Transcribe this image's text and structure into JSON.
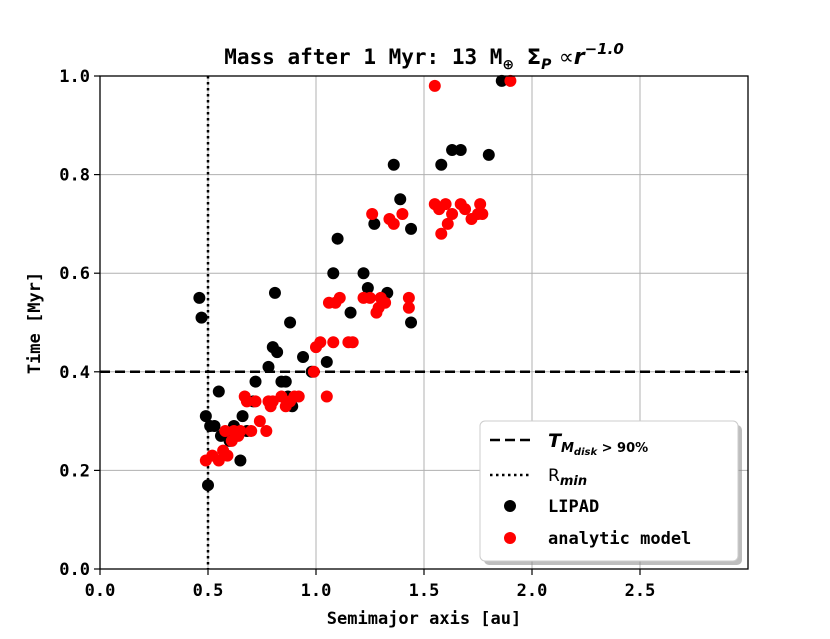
{
  "chart_data": {
    "type": "scatter",
    "title": {
      "prefix": "Mass after 1 Myr: 13 M",
      "subscript": "⊕",
      "sigma": "Σ",
      "sigma_sub": "P",
      "prop": "∝",
      "r": "r",
      "exponent": "−1.0"
    },
    "xlabel": "Semimajor axis [au]",
    "ylabel": "Time [Myr]",
    "xlim": [
      0.0,
      3.0
    ],
    "ylim": [
      0.0,
      1.0
    ],
    "xticks": [
      {
        "value": 0.0,
        "label": "0.0"
      },
      {
        "value": 0.5,
        "label": "0.5"
      },
      {
        "value": 1.0,
        "label": "1.0"
      },
      {
        "value": 1.5,
        "label": "1.5"
      },
      {
        "value": 2.0,
        "label": "2.0"
      },
      {
        "value": 2.5,
        "label": "2.5"
      }
    ],
    "yticks": [
      {
        "value": 0.0,
        "label": "0.0"
      },
      {
        "value": 0.2,
        "label": "0.2"
      },
      {
        "value": 0.4,
        "label": "0.4"
      },
      {
        "value": 0.6,
        "label": "0.6"
      },
      {
        "value": 0.8,
        "label": "0.8"
      },
      {
        "value": 1.0,
        "label": "1.0"
      }
    ],
    "grid": true,
    "hline": {
      "y": 0.4,
      "label_main": "T",
      "label_sub": "M",
      "label_subsub": "disk",
      "label_rest": " > 90%"
    },
    "vline": {
      "x": 0.5,
      "label_main": "R",
      "label_sub": "min"
    },
    "legend_position": "lower-right",
    "series": [
      {
        "name": "LIPAD",
        "color": "#000000",
        "points": [
          [
            0.46,
            0.55
          ],
          [
            0.47,
            0.51
          ],
          [
            0.49,
            0.31
          ],
          [
            0.5,
            0.17
          ],
          [
            0.51,
            0.29
          ],
          [
            0.53,
            0.29
          ],
          [
            0.55,
            0.36
          ],
          [
            0.56,
            0.27
          ],
          [
            0.6,
            0.26
          ],
          [
            0.62,
            0.29
          ],
          [
            0.65,
            0.22
          ],
          [
            0.66,
            0.31
          ],
          [
            0.68,
            0.28
          ],
          [
            0.71,
            0.34
          ],
          [
            0.72,
            0.38
          ],
          [
            0.78,
            0.41
          ],
          [
            0.8,
            0.45
          ],
          [
            0.81,
            0.56
          ],
          [
            0.82,
            0.44
          ],
          [
            0.84,
            0.38
          ],
          [
            0.86,
            0.38
          ],
          [
            0.87,
            0.35
          ],
          [
            0.88,
            0.5
          ],
          [
            0.89,
            0.33
          ],
          [
            0.94,
            0.43
          ],
          [
            0.98,
            0.4
          ],
          [
            1.05,
            0.42
          ],
          [
            1.08,
            0.6
          ],
          [
            1.1,
            0.67
          ],
          [
            1.16,
            0.52
          ],
          [
            1.22,
            0.6
          ],
          [
            1.24,
            0.57
          ],
          [
            1.27,
            0.7
          ],
          [
            1.33,
            0.56
          ],
          [
            1.36,
            0.82
          ],
          [
            1.39,
            0.75
          ],
          [
            1.44,
            0.69
          ],
          [
            1.44,
            0.5
          ],
          [
            1.58,
            0.82
          ],
          [
            1.63,
            0.85
          ],
          [
            1.67,
            0.85
          ],
          [
            1.8,
            0.84
          ],
          [
            1.86,
            0.99
          ]
        ]
      },
      {
        "name": "analytic model",
        "color": "#ff0000",
        "points": [
          [
            0.49,
            0.22
          ],
          [
            0.52,
            0.23
          ],
          [
            0.55,
            0.22
          ],
          [
            0.57,
            0.24
          ],
          [
            0.58,
            0.28
          ],
          [
            0.59,
            0.23
          ],
          [
            0.61,
            0.26
          ],
          [
            0.62,
            0.28
          ],
          [
            0.64,
            0.27
          ],
          [
            0.65,
            0.28
          ],
          [
            0.67,
            0.35
          ],
          [
            0.68,
            0.34
          ],
          [
            0.7,
            0.28
          ],
          [
            0.72,
            0.34
          ],
          [
            0.74,
            0.3
          ],
          [
            0.77,
            0.28
          ],
          [
            0.78,
            0.34
          ],
          [
            0.79,
            0.33
          ],
          [
            0.8,
            0.34
          ],
          [
            0.84,
            0.35
          ],
          [
            0.86,
            0.33
          ],
          [
            0.88,
            0.34
          ],
          [
            0.9,
            0.35
          ],
          [
            0.92,
            0.35
          ],
          [
            0.99,
            0.4
          ],
          [
            1.0,
            0.45
          ],
          [
            1.02,
            0.46
          ],
          [
            1.05,
            0.35
          ],
          [
            1.06,
            0.54
          ],
          [
            1.08,
            0.46
          ],
          [
            1.09,
            0.54
          ],
          [
            1.11,
            0.55
          ],
          [
            1.15,
            0.46
          ],
          [
            1.17,
            0.46
          ],
          [
            1.22,
            0.55
          ],
          [
            1.25,
            0.55
          ],
          [
            1.26,
            0.72
          ],
          [
            1.28,
            0.52
          ],
          [
            1.29,
            0.53
          ],
          [
            1.3,
            0.55
          ],
          [
            1.32,
            0.54
          ],
          [
            1.34,
            0.71
          ],
          [
            1.36,
            0.7
          ],
          [
            1.4,
            0.72
          ],
          [
            1.43,
            0.55
          ],
          [
            1.43,
            0.53
          ],
          [
            1.55,
            0.98
          ],
          [
            1.55,
            0.74
          ],
          [
            1.57,
            0.73
          ],
          [
            1.58,
            0.68
          ],
          [
            1.6,
            0.74
          ],
          [
            1.61,
            0.7
          ],
          [
            1.63,
            0.72
          ],
          [
            1.67,
            0.74
          ],
          [
            1.69,
            0.73
          ],
          [
            1.72,
            0.71
          ],
          [
            1.75,
            0.72
          ],
          [
            1.76,
            0.74
          ],
          [
            1.77,
            0.72
          ],
          [
            1.9,
            0.99
          ]
        ]
      }
    ]
  },
  "legend": {
    "items": [
      {
        "style": "dashed",
        "label_main": "T",
        "label_sub": "M",
        "label_subsub": "disk",
        "label_rest": " > 90%"
      },
      {
        "style": "dotted",
        "label_main": "R",
        "label_sub": "min"
      },
      {
        "style": "marker",
        "color": "#000000",
        "label": "LIPAD"
      },
      {
        "style": "marker",
        "color": "#ff0000",
        "label": "analytic model"
      }
    ]
  }
}
